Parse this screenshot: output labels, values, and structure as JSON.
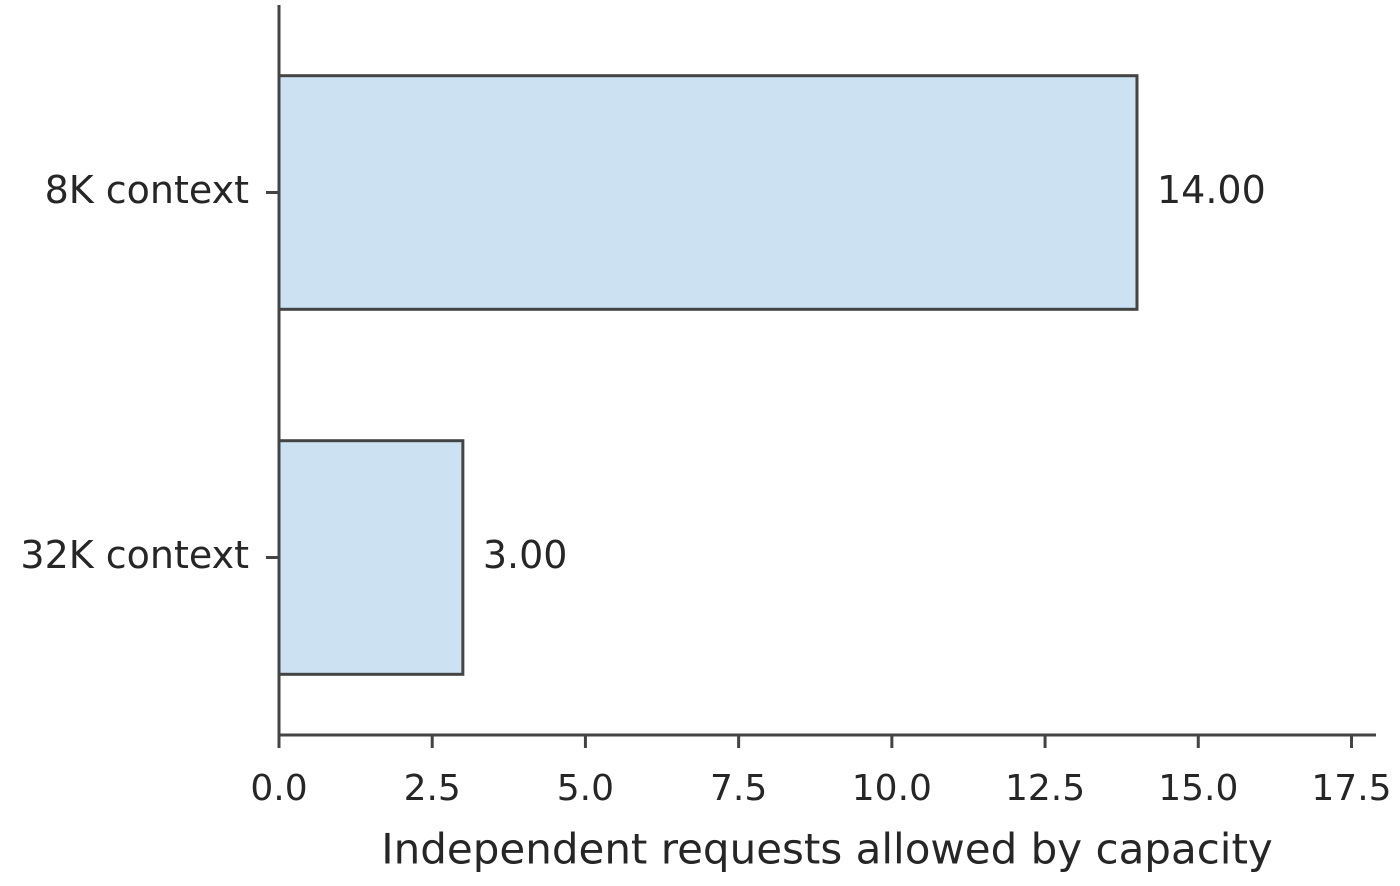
{
  "chart_data": {
    "type": "barh",
    "xlabel": "Independent requests allowed by capacity",
    "categories": [
      "8K context",
      "32K context"
    ],
    "values": [
      14,
      3
    ],
    "value_labels": [
      "14.00",
      "3.00"
    ],
    "color": "#cce2f3",
    "edgecolor": "#444444",
    "xlim": [
      0,
      17.9
    ],
    "xticks": [
      {
        "value": 0,
        "label": "0.0"
      },
      2.5,
      {
        "value": 5,
        "label": "5.0"
      },
      7.5,
      {
        "value": 10,
        "label": "10.0"
      },
      12.5,
      {
        "value": 15,
        "label": "15.0"
      },
      17.5
    ],
    "grid": false
  }
}
